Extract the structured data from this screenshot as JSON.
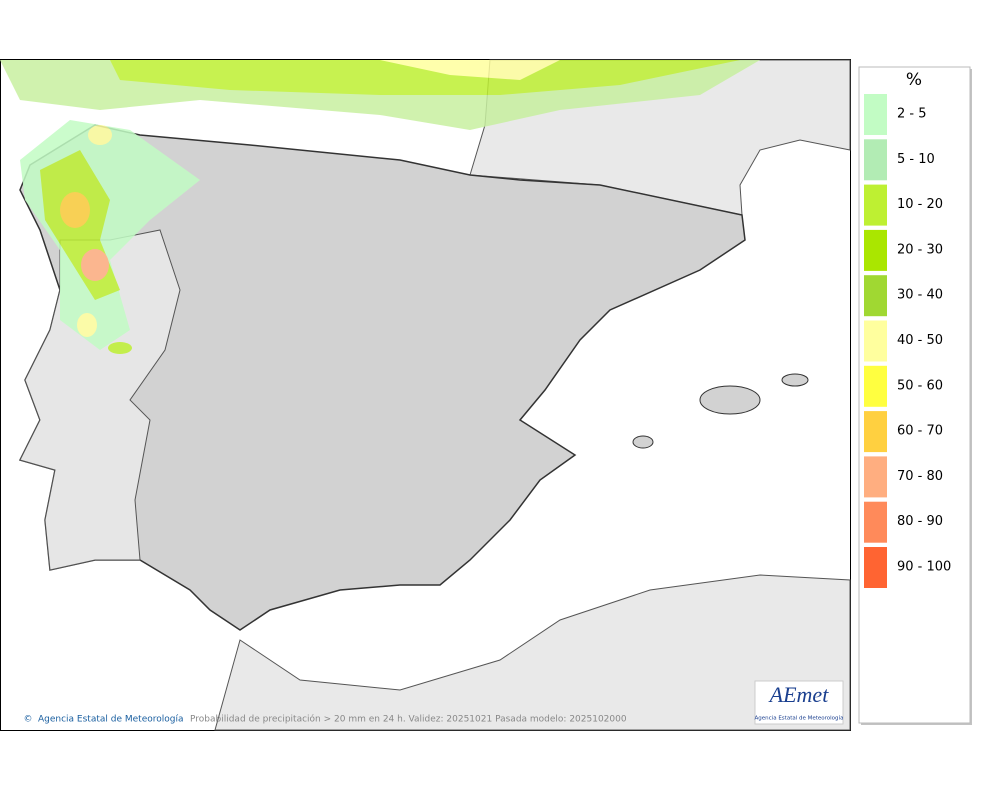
{
  "legend": {
    "title": "%",
    "items": [
      {
        "label": "2 - 5",
        "color": "#c2fcc4"
      },
      {
        "label": "5 - 10",
        "color": "#b2ecb4"
      },
      {
        "label": "10 - 20",
        "color": "#bef032"
      },
      {
        "label": "20 - 30",
        "color": "#aae600"
      },
      {
        "label": "30 - 40",
        "color": "#a0d832"
      },
      {
        "label": "40 - 50",
        "color": "#ffff9e"
      },
      {
        "label": "50 - 60",
        "color": "#ffff40"
      },
      {
        "label": "60 - 70",
        "color": "#ffd040"
      },
      {
        "label": "70 - 80",
        "color": "#ffae80"
      },
      {
        "label": "80 - 90",
        "color": "#ff8a5a"
      },
      {
        "label": "90 - 100",
        "color": "#ff6432"
      }
    ]
  },
  "footer": {
    "credit": "Agencia Estatal de Meteorología",
    "caption": "Probabilidad de precipitación > 20 mm en 24 h. Validez: 20251021 Pasada modelo: 2025102000"
  },
  "logo": {
    "name": "AEmet",
    "subtitle": "Agencia Estatal de Meteorología"
  }
}
